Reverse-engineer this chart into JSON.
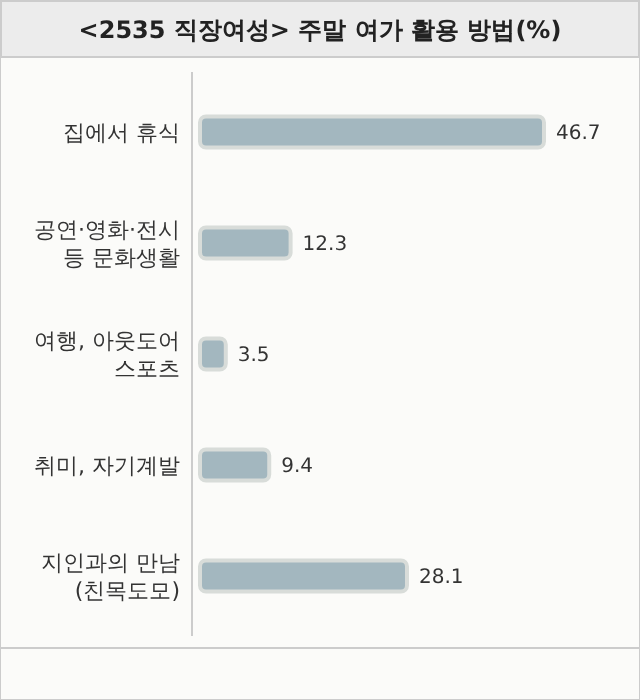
{
  "chart_data": {
    "type": "bar",
    "orientation": "horizontal",
    "title": "<2535 직장여성> 주말 여가 활용 방법(%)",
    "categories": [
      "집에서 휴식",
      "공연·영화·전시\n등 문화생활",
      "여행, 아웃도어\n스포츠",
      "취미, 자기계발",
      "지인과의 만남\n(친목도모)"
    ],
    "values": [
      46.7,
      12.3,
      3.5,
      9.4,
      28.1
    ],
    "color": "#a3b7bf",
    "data_labels": true
  }
}
